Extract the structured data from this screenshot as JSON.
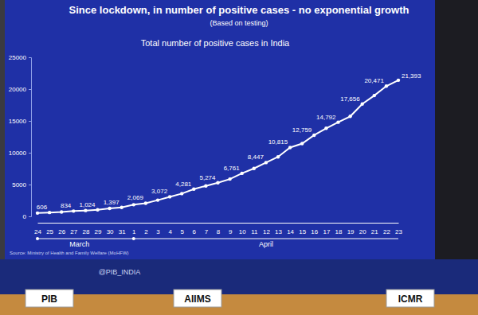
{
  "chart_data": {
    "type": "line",
    "title": "Since lockdown, in number of positive cases - no exponential growth",
    "subtitle": "(Based on testing)",
    "heading": "Total number of positive cases in India",
    "source": "Source: Ministry of Health and Family Welfare (MoHFW)",
    "categories": [
      "24",
      "25",
      "26",
      "27",
      "28",
      "29",
      "30",
      "31",
      "1",
      "2",
      "3",
      "4",
      "5",
      "6",
      "7",
      "8",
      "9",
      "10",
      "11",
      "12",
      "13",
      "14",
      "15",
      "16",
      "17",
      "18",
      "19",
      "20",
      "21",
      "22",
      "23"
    ],
    "month_labels": [
      "March",
      "April"
    ],
    "values": [
      519,
      606,
      694,
      834,
      918,
      1024,
      1251,
      1397,
      1834,
      2069,
      2547,
      3072,
      3577,
      4281,
      4789,
      5274,
      5865,
      6761,
      7529,
      8447,
      9352,
      10815,
      11439,
      12759,
      13835,
      14792,
      15712,
      17656,
      18985,
      20471,
      21393
    ],
    "value_labels": [
      null,
      "606",
      null,
      "834",
      null,
      "1,024",
      null,
      "1,397",
      null,
      "2,069",
      null,
      "3,072",
      null,
      "4,281",
      null,
      "5,274",
      null,
      "6,761",
      null,
      "8,447",
      null,
      "10,815",
      null,
      "12,759",
      null,
      "14,792",
      null,
      "17,656",
      null,
      "20,471",
      "21,393"
    ],
    "ylim": [
      0,
      25000
    ],
    "yticks": [
      0,
      5000,
      10000,
      15000,
      20000,
      25000
    ],
    "color": "#ffffff",
    "marker": "circle",
    "grid": false,
    "data_labels": true,
    "nameplates": [
      "PIB",
      "AIIMS",
      "ICMR"
    ],
    "backdrop_texts": [
      "@PIB_INDIA"
    ]
  }
}
